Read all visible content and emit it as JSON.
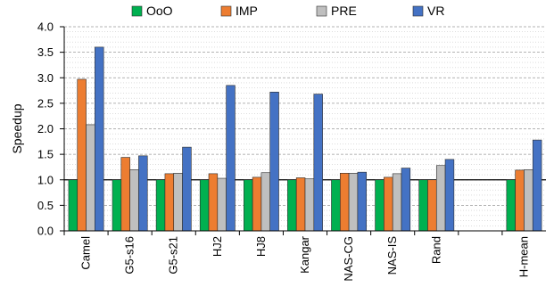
{
  "chart_data": {
    "type": "bar",
    "title": "",
    "xlabel": "",
    "ylabel": "Speedup",
    "ylim": [
      0,
      4.0
    ],
    "yticks": [
      0.0,
      0.5,
      1.0,
      1.5,
      2.0,
      2.5,
      3.0,
      3.5,
      4.0
    ],
    "ytick_labels": [
      "0.0",
      "0.5",
      "1.0",
      "1.5",
      "2.0",
      "2.5",
      "3.0",
      "3.5",
      "4.0"
    ],
    "grid": true,
    "reference_line": 1.0,
    "legend_position": "top",
    "categories": [
      "Camel",
      "G5-s16",
      "G5-s21",
      "HJ2",
      "HJ8",
      "Kangar",
      "NAS-CG",
      "NAS-IS",
      "Rand",
      "",
      "H-mean"
    ],
    "category_labels": [
      "Camel",
      "G5-s16",
      "G5-s21",
      "HJ2",
      "HJ8",
      "Kangar",
      "NAS-CG",
      "NAS-IS",
      "Rand",
      "",
      "H-mean"
    ],
    "series": [
      {
        "name": "OoO",
        "color": "#00b050",
        "values": [
          1.0,
          1.0,
          1.0,
          1.0,
          1.0,
          1.0,
          1.0,
          1.0,
          1.0,
          null,
          1.0
        ]
      },
      {
        "name": "IMP",
        "color": "#ed7d31",
        "values": [
          2.97,
          1.44,
          1.12,
          1.12,
          1.05,
          1.04,
          1.13,
          1.05,
          1.0,
          null,
          1.19
        ]
      },
      {
        "name": "PRE",
        "color": "#bfbfbf",
        "values": [
          2.08,
          1.2,
          1.13,
          1.03,
          1.14,
          1.02,
          1.13,
          1.12,
          1.28,
          null,
          1.2
        ]
      },
      {
        "name": "VR",
        "color": "#4472c4",
        "values": [
          3.6,
          1.47,
          1.64,
          2.85,
          2.72,
          2.68,
          1.15,
          1.23,
          1.4,
          null,
          1.78
        ]
      }
    ]
  }
}
